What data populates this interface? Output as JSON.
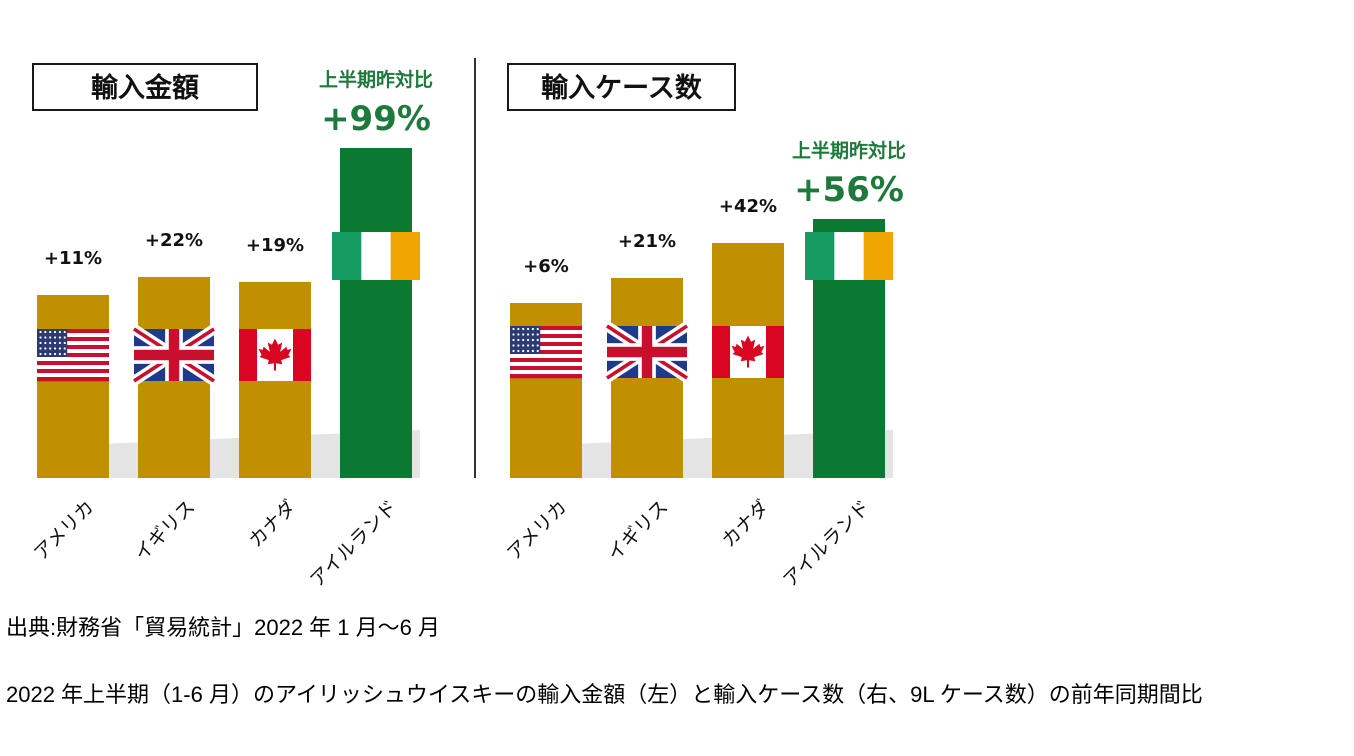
{
  "chart_data": [
    {
      "type": "bar",
      "title": "輸入金額",
      "categories": [
        "アメリカ",
        "イギリス",
        "カナダ",
        "アイルランド"
      ],
      "values": [
        11,
        22,
        19,
        99
      ],
      "value_labels": [
        "+11%",
        "+22%",
        "+19%",
        "+99%"
      ],
      "highlight": {
        "category": "アイルランド",
        "label": "上半期昨対比",
        "value_label": "+99%"
      },
      "flags": [
        "us-flag-icon",
        "uk-flag-icon",
        "canada-flag-icon",
        "ireland-flag-icon"
      ],
      "colors": {
        "bar": "#c09000",
        "highlight_bar": "#0a7a32",
        "highlight_text": "#1e7a3c"
      }
    },
    {
      "type": "bar",
      "title": "輸入ケース数",
      "categories": [
        "アメリカ",
        "イギリス",
        "カナダ",
        "アイルランド"
      ],
      "values": [
        6,
        21,
        42,
        56
      ],
      "value_labels": [
        "+6%",
        "+21%",
        "+42%",
        "+56%"
      ],
      "highlight": {
        "category": "アイルランド",
        "label": "上半期昨対比",
        "value_label": "+56%"
      },
      "flags": [
        "us-flag-icon",
        "uk-flag-icon",
        "canada-flag-icon",
        "ireland-flag-icon"
      ],
      "colors": {
        "bar": "#c09000",
        "highlight_bar": "#0a7a32",
        "highlight_text": "#1e7a3c"
      }
    }
  ],
  "source": "出典:財務省「貿易統計」2022 年 1 月～6 月",
  "description": "2022 年上半期（1-6 月）のアイリッシュウイスキーの輸入金額（左）と輸入ケース数（右、9L ケース数）の前年同期間比"
}
